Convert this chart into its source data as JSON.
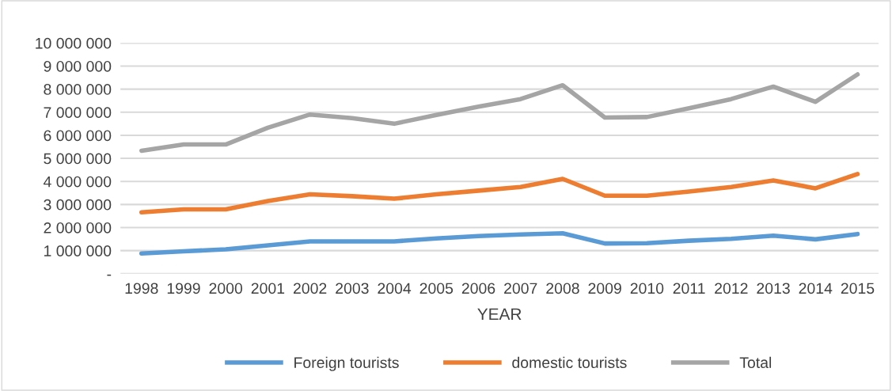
{
  "chart_data": {
    "type": "line",
    "xlabel": "YEAR",
    "categories": [
      "1998",
      "1999",
      "2000",
      "2001",
      "2002",
      "2003",
      "2004",
      "2005",
      "2006",
      "2007",
      "2008",
      "2009",
      "2010",
      "2011",
      "2012",
      "2013",
      "2014",
      "2015"
    ],
    "series": [
      {
        "name": "Foreign tourists",
        "color": "#5b9bd5",
        "values": [
          880000,
          970000,
          1060000,
          1230000,
          1400000,
          1400000,
          1400000,
          1530000,
          1630000,
          1700000,
          1750000,
          1310000,
          1320000,
          1430000,
          1510000,
          1650000,
          1490000,
          1720000
        ]
      },
      {
        "name": "domestic tourists",
        "color": "#ed7d31",
        "values": [
          2660000,
          2790000,
          2790000,
          3150000,
          3440000,
          3360000,
          3250000,
          3440000,
          3600000,
          3760000,
          4110000,
          3380000,
          3380000,
          3560000,
          3760000,
          4040000,
          3700000,
          4320000
        ]
      },
      {
        "name": "Total",
        "color": "#a5a5a5",
        "values": [
          5330000,
          5600000,
          5600000,
          6330000,
          6900000,
          6740000,
          6500000,
          6880000,
          7240000,
          7570000,
          8170000,
          6770000,
          6790000,
          7170000,
          7570000,
          8110000,
          7450000,
          8640000
        ]
      }
    ],
    "ylim": [
      0,
      10000000
    ],
    "yticks": [
      {
        "value": 0,
        "label": "-"
      },
      {
        "value": 1000000,
        "label": "1 000 000"
      },
      {
        "value": 2000000,
        "label": "2 000 000"
      },
      {
        "value": 3000000,
        "label": "3 000 000"
      },
      {
        "value": 4000000,
        "label": "4 000 000"
      },
      {
        "value": 5000000,
        "label": "5 000 000"
      },
      {
        "value": 6000000,
        "label": "6 000 000"
      },
      {
        "value": 7000000,
        "label": "7 000 000"
      },
      {
        "value": 8000000,
        "label": "8 000 000"
      },
      {
        "value": 9000000,
        "label": "9 000 000"
      },
      {
        "value": 10000000,
        "label": "10 000 000"
      }
    ],
    "grid": "y",
    "legend": "bottom",
    "marker": "none",
    "line_style": "solid"
  }
}
